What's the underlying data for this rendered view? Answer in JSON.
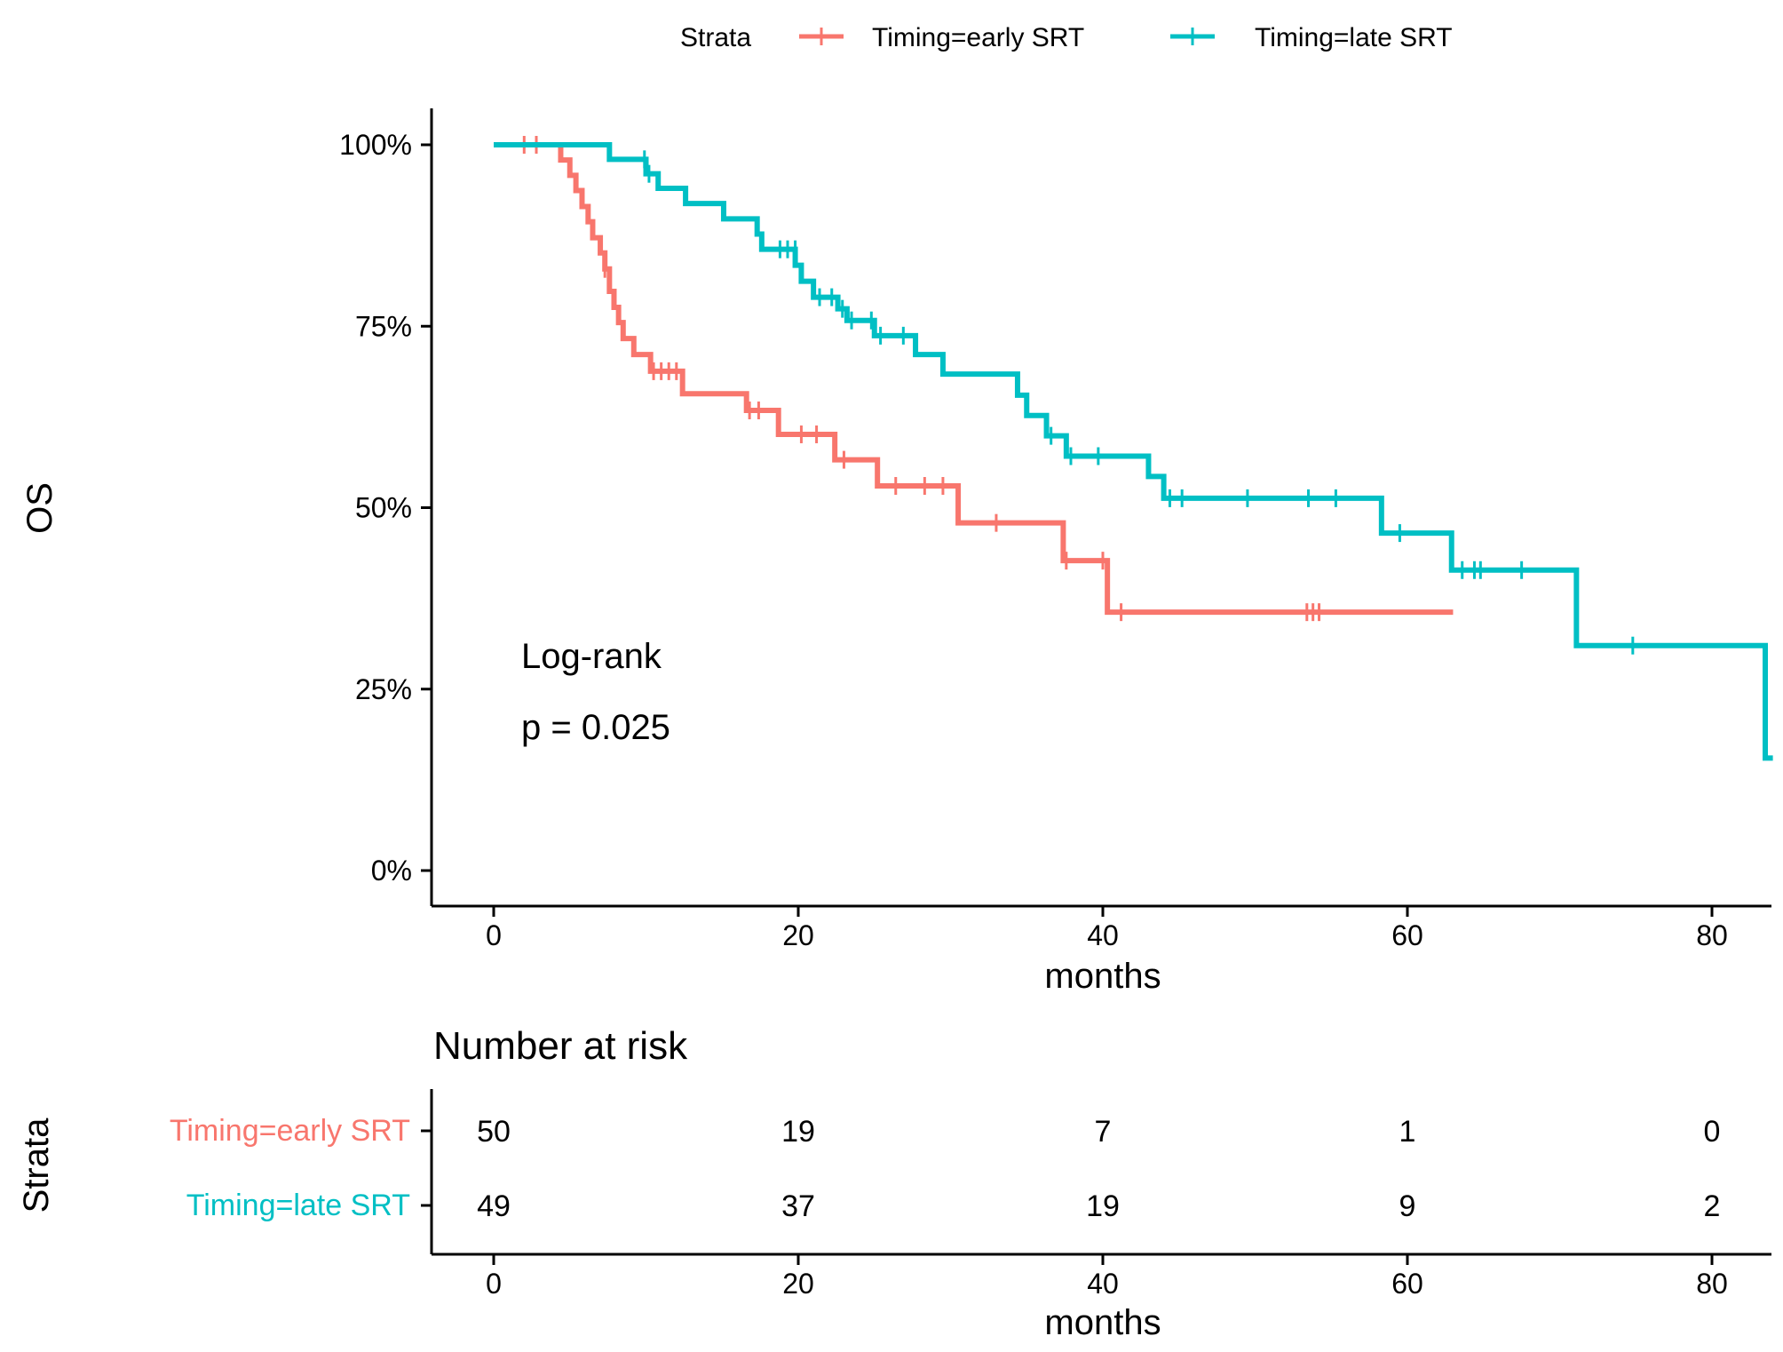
{
  "chart_data": {
    "type": "line",
    "subtype": "kaplan-meier",
    "ylabel": "OS",
    "xlabel": "months",
    "xlim": [
      -4,
      84
    ],
    "ylim": [
      -0.05,
      1.05
    ],
    "x_ticks": [
      0,
      20,
      40,
      60,
      80
    ],
    "x_tick_labels": [
      "0",
      "20",
      "40",
      "60",
      "80"
    ],
    "y_ticks": [
      0,
      0.25,
      0.5,
      0.75,
      1.0
    ],
    "y_tick_labels": [
      "0%",
      "25%",
      "50%",
      "75%",
      "100%"
    ],
    "legend": {
      "title": "Strata",
      "position": "top",
      "entries": [
        "Timing=early SRT",
        "Timing=late SRT"
      ]
    },
    "annotation": {
      "line1": "Log-rank",
      "line2": "p = 0.025"
    },
    "series": [
      {
        "name": "Timing=early SRT",
        "color": "#F8766D",
        "steps": [
          [
            0,
            1.0
          ],
          [
            4.4,
            0.979
          ],
          [
            5.0,
            0.958
          ],
          [
            5.4,
            0.937
          ],
          [
            5.8,
            0.915
          ],
          [
            6.2,
            0.894
          ],
          [
            6.5,
            0.872
          ],
          [
            7.0,
            0.851
          ],
          [
            7.3,
            0.829
          ],
          [
            7.6,
            0.798
          ],
          [
            7.9,
            0.776
          ],
          [
            8.2,
            0.755
          ],
          [
            8.5,
            0.733
          ],
          [
            9.2,
            0.711
          ],
          [
            10.3,
            0.688
          ],
          [
            12.4,
            0.657
          ],
          [
            16.6,
            0.634
          ],
          [
            18.7,
            0.601
          ],
          [
            22.4,
            0.566
          ],
          [
            25.2,
            0.53
          ],
          [
            30.5,
            0.479
          ],
          [
            37.4,
            0.427
          ],
          [
            40.3,
            0.356
          ],
          [
            63.0,
            0.356
          ]
        ],
        "censored": [
          [
            2.0,
            1.0
          ],
          [
            2.8,
            1.0
          ],
          [
            7.3,
            0.829
          ],
          [
            10.5,
            0.688
          ],
          [
            11.0,
            0.688
          ],
          [
            11.5,
            0.688
          ],
          [
            12.0,
            0.688
          ],
          [
            16.8,
            0.634
          ],
          [
            17.4,
            0.634
          ],
          [
            20.2,
            0.601
          ],
          [
            21.2,
            0.601
          ],
          [
            23.0,
            0.566
          ],
          [
            26.4,
            0.53
          ],
          [
            28.3,
            0.53
          ],
          [
            29.5,
            0.53
          ],
          [
            33.0,
            0.479
          ],
          [
            37.6,
            0.427
          ],
          [
            40.0,
            0.427
          ],
          [
            41.2,
            0.356
          ],
          [
            53.4,
            0.356
          ],
          [
            53.8,
            0.356
          ],
          [
            54.2,
            0.356
          ]
        ]
      },
      {
        "name": "Timing=late SRT",
        "color": "#00BFC4",
        "steps": [
          [
            0,
            1.0
          ],
          [
            7.6,
            0.98
          ],
          [
            10.0,
            0.96
          ],
          [
            10.8,
            0.94
          ],
          [
            12.6,
            0.919
          ],
          [
            15.1,
            0.898
          ],
          [
            17.3,
            0.877
          ],
          [
            17.6,
            0.856
          ],
          [
            19.8,
            0.834
          ],
          [
            20.2,
            0.812
          ],
          [
            21.0,
            0.79
          ],
          [
            22.6,
            0.774
          ],
          [
            23.2,
            0.758
          ],
          [
            25.0,
            0.737
          ],
          [
            27.7,
            0.711
          ],
          [
            29.5,
            0.684
          ],
          [
            34.4,
            0.655
          ],
          [
            35.0,
            0.627
          ],
          [
            36.3,
            0.599
          ],
          [
            37.6,
            0.571
          ],
          [
            43.0,
            0.543
          ],
          [
            44.0,
            0.513
          ],
          [
            58.3,
            0.465
          ],
          [
            62.9,
            0.414
          ],
          [
            71.1,
            0.31
          ],
          [
            83.5,
            0.155
          ],
          [
            84.0,
            0.155
          ]
        ],
        "censored": [
          [
            9.9,
            0.98
          ],
          [
            10.2,
            0.96
          ],
          [
            18.8,
            0.856
          ],
          [
            19.3,
            0.856
          ],
          [
            19.8,
            0.856
          ],
          [
            21.4,
            0.79
          ],
          [
            22.2,
            0.79
          ],
          [
            22.9,
            0.774
          ],
          [
            23.5,
            0.758
          ],
          [
            24.8,
            0.758
          ],
          [
            25.4,
            0.737
          ],
          [
            26.9,
            0.737
          ],
          [
            36.6,
            0.599
          ],
          [
            37.9,
            0.571
          ],
          [
            39.7,
            0.571
          ],
          [
            44.4,
            0.513
          ],
          [
            45.2,
            0.513
          ],
          [
            49.5,
            0.513
          ],
          [
            53.5,
            0.513
          ],
          [
            55.3,
            0.513
          ],
          [
            59.5,
            0.465
          ],
          [
            63.6,
            0.414
          ],
          [
            64.4,
            0.414
          ],
          [
            64.8,
            0.414
          ],
          [
            67.5,
            0.414
          ],
          [
            74.8,
            0.31
          ]
        ]
      }
    ],
    "risk_table": {
      "title": "Number at risk",
      "ylabel": "Strata",
      "xlabel": "months",
      "times": [
        0,
        20,
        40,
        60,
        80
      ],
      "rows": [
        {
          "name": "Timing=early SRT",
          "color": "#F8766D",
          "values": [
            "50",
            "19",
            "7",
            "1",
            "0"
          ]
        },
        {
          "name": "Timing=late SRT",
          "color": "#00BFC4",
          "values": [
            "49",
            "37",
            "19",
            "9",
            "2"
          ]
        }
      ]
    }
  }
}
